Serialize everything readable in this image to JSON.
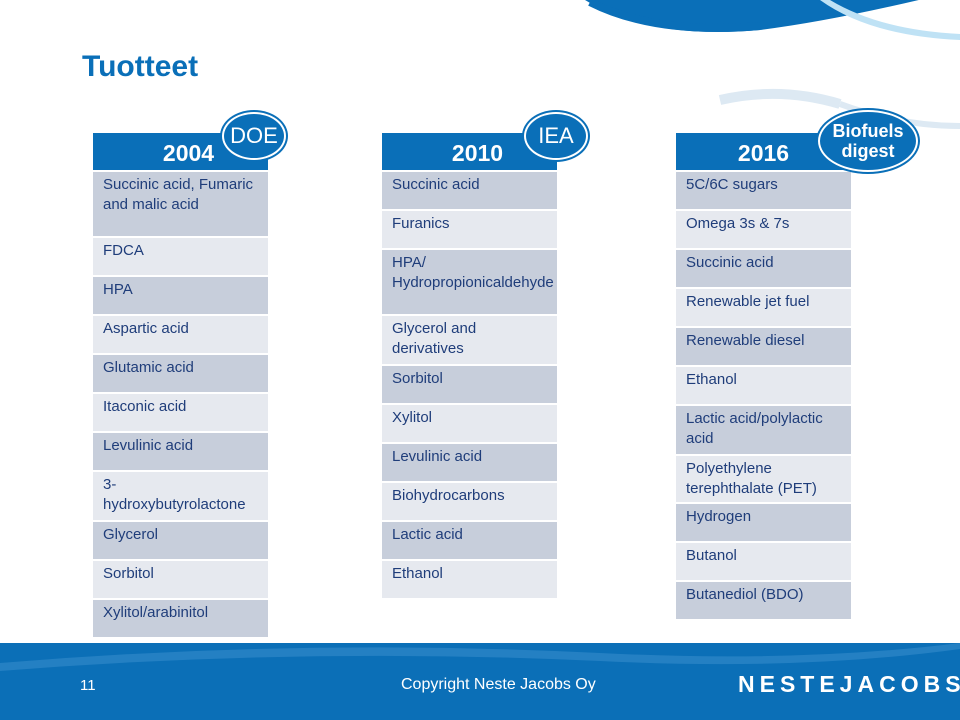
{
  "title": "Tuotteet",
  "colors": {
    "accent": "#0a6fb8",
    "cell_dark": "#c7cedb",
    "cell_light": "#e6e9ef",
    "text": "#1f3d7a"
  },
  "columns": [
    {
      "year": "2004",
      "badge": "DOE",
      "items": [
        "Succinic acid, Fumaric and malic acid",
        "FDCA",
        "HPA",
        "Aspartic acid",
        "Glutamic acid",
        "Itaconic acid",
        "Levulinic acid",
        "3-hydroxybutyrolactone",
        "Glycerol",
        "Sorbitol",
        "Xylitol/arabinitol"
      ]
    },
    {
      "year": "2010",
      "badge": "IEA",
      "items": [
        "Succinic acid",
        "Furanics",
        "HPA/ Hydropropionicaldehyde",
        "Glycerol and derivatives",
        "Sorbitol",
        "Xylitol",
        "Levulinic acid",
        "Biohydrocarbons",
        "Lactic acid",
        "Ethanol"
      ]
    },
    {
      "year": "2016",
      "badge_line1": "Biofuels",
      "badge_line2": "digest",
      "items": [
        "5C/6C sugars",
        "Omega 3s & 7s",
        "Succinic acid",
        "Renewable jet fuel",
        "Renewable diesel",
        "Ethanol",
        "Lactic acid/polylactic acid",
        "Polyethylene terephthalate (PET)",
        "Hydrogen",
        "Butanol",
        "Butanediol (BDO)"
      ]
    }
  ],
  "footer": {
    "page_number": "11",
    "copyright": "Copyright Neste Jacobs Oy",
    "logo_text": "NESTEJACOBS"
  }
}
